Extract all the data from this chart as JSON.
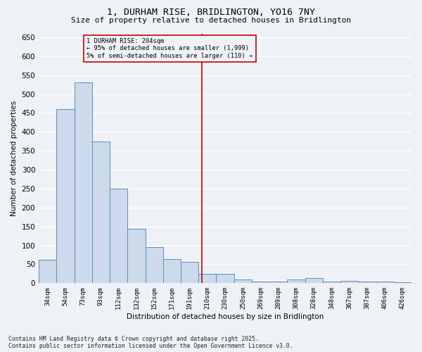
{
  "title": "1, DURHAM RISE, BRIDLINGTON, YO16 7NY",
  "subtitle": "Size of property relative to detached houses in Bridlington",
  "xlabel": "Distribution of detached houses by size in Bridlington",
  "ylabel": "Number of detached properties",
  "categories": [
    "34sqm",
    "54sqm",
    "73sqm",
    "93sqm",
    "112sqm",
    "132sqm",
    "152sqm",
    "171sqm",
    "191sqm",
    "210sqm",
    "230sqm",
    "250sqm",
    "269sqm",
    "289sqm",
    "308sqm",
    "328sqm",
    "348sqm",
    "367sqm",
    "387sqm",
    "406sqm",
    "426sqm"
  ],
  "bar_heights": [
    62,
    460,
    530,
    375,
    250,
    143,
    95,
    63,
    57,
    25,
    25,
    10,
    5,
    5,
    10,
    13,
    5,
    7,
    5,
    5,
    3
  ],
  "bar_color": "#ccdaeb",
  "bar_edge_color": "#5b8db8",
  "vline_color": "#cc0000",
  "annotation_title": "1 DURHAM RISE: 204sqm",
  "annotation_line1": "← 95% of detached houses are smaller (1,999)",
  "annotation_line2": "5% of semi-detached houses are larger (110) →",
  "annotation_box_color": "#cc0000",
  "ylim": [
    0,
    660
  ],
  "yticks": [
    0,
    50,
    100,
    150,
    200,
    250,
    300,
    350,
    400,
    450,
    500,
    550,
    600,
    650
  ],
  "background_color": "#eef2f7",
  "grid_color": "#ffffff",
  "footer_line1": "Contains HM Land Registry data © Crown copyright and database right 2025.",
  "footer_line2": "Contains public sector information licensed under the Open Government Licence v3.0."
}
